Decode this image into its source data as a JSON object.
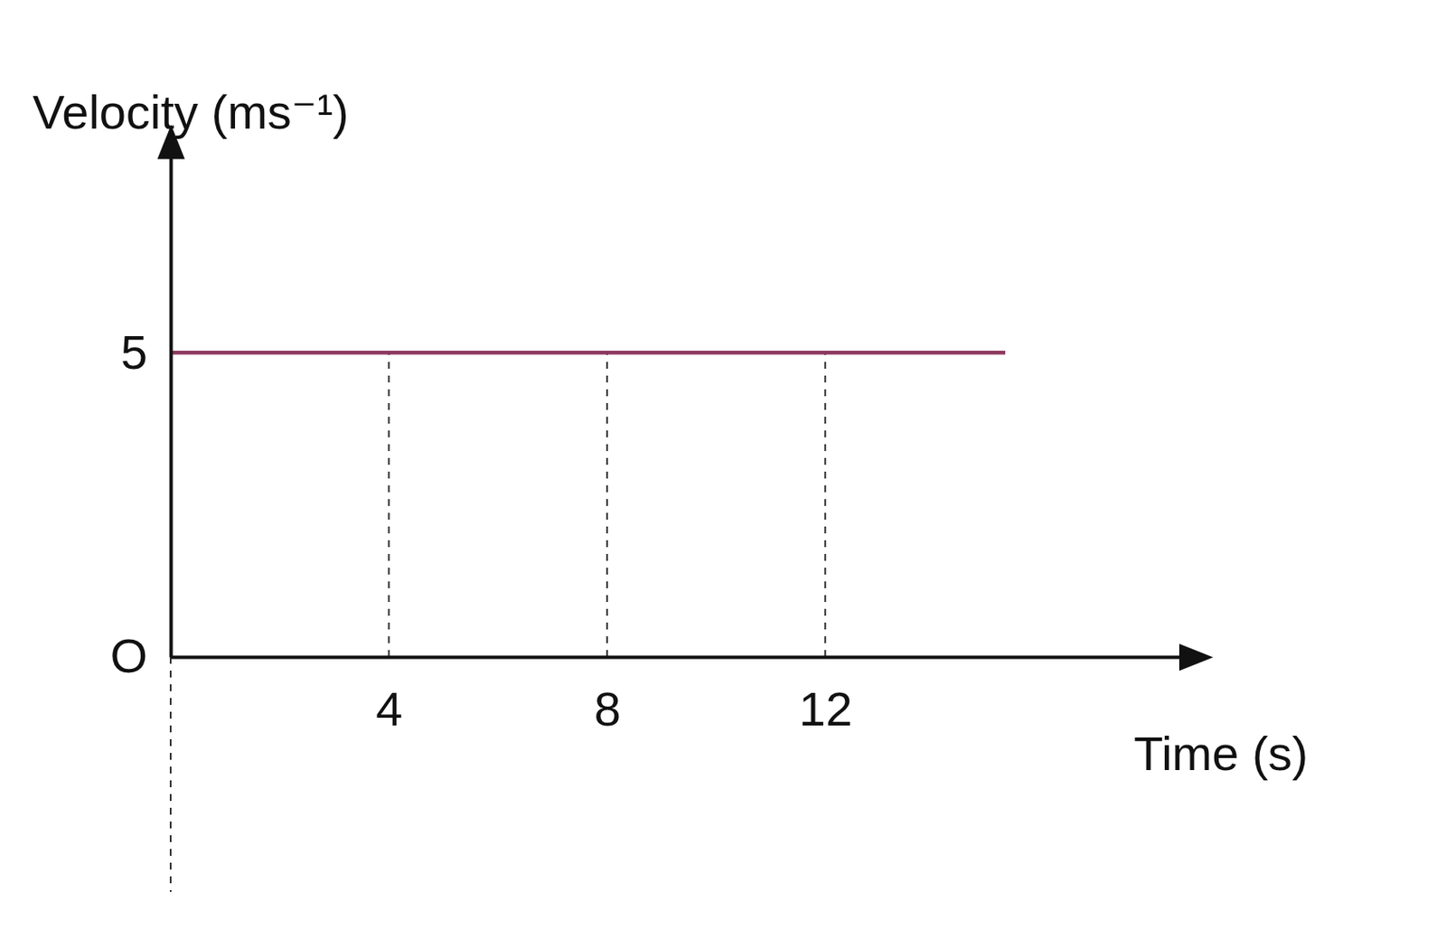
{
  "chart_data": {
    "type": "line",
    "y_label": "Velocity (ms⁻¹)",
    "x_label": "Time (s)",
    "x": [
      0,
      15.3
    ],
    "values": [
      5,
      5
    ],
    "color": "#8e3a62",
    "line_style": "solid",
    "xlim": [
      0,
      18.6
    ],
    "ylim": [
      0,
      8.3
    ],
    "xticks": [
      4,
      8,
      12
    ],
    "yticks": [
      {
        "value": 0,
        "label": "O"
      },
      5
    ],
    "grid": true
  }
}
